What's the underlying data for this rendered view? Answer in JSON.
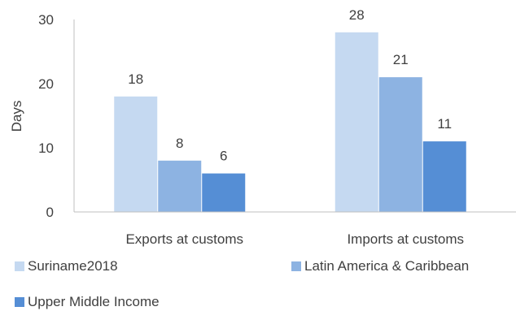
{
  "chart_data": {
    "type": "bar",
    "categories": [
      "Exports at customs",
      "Imports at customs"
    ],
    "series": [
      {
        "name": "Suriname2018",
        "values": [
          18,
          28
        ],
        "color": "#c5d9f1"
      },
      {
        "name": "Latin America & Caribbean",
        "values": [
          8,
          21
        ],
        "color": "#8db3e2"
      },
      {
        "name": "Upper Middle Income",
        "values": [
          6,
          11
        ],
        "color": "#558ed5"
      }
    ],
    "ylabel": "Days",
    "ylim": [
      0,
      30
    ],
    "yticks": [
      0,
      10,
      20,
      30
    ],
    "grid": false,
    "legend_position": "bottom"
  }
}
